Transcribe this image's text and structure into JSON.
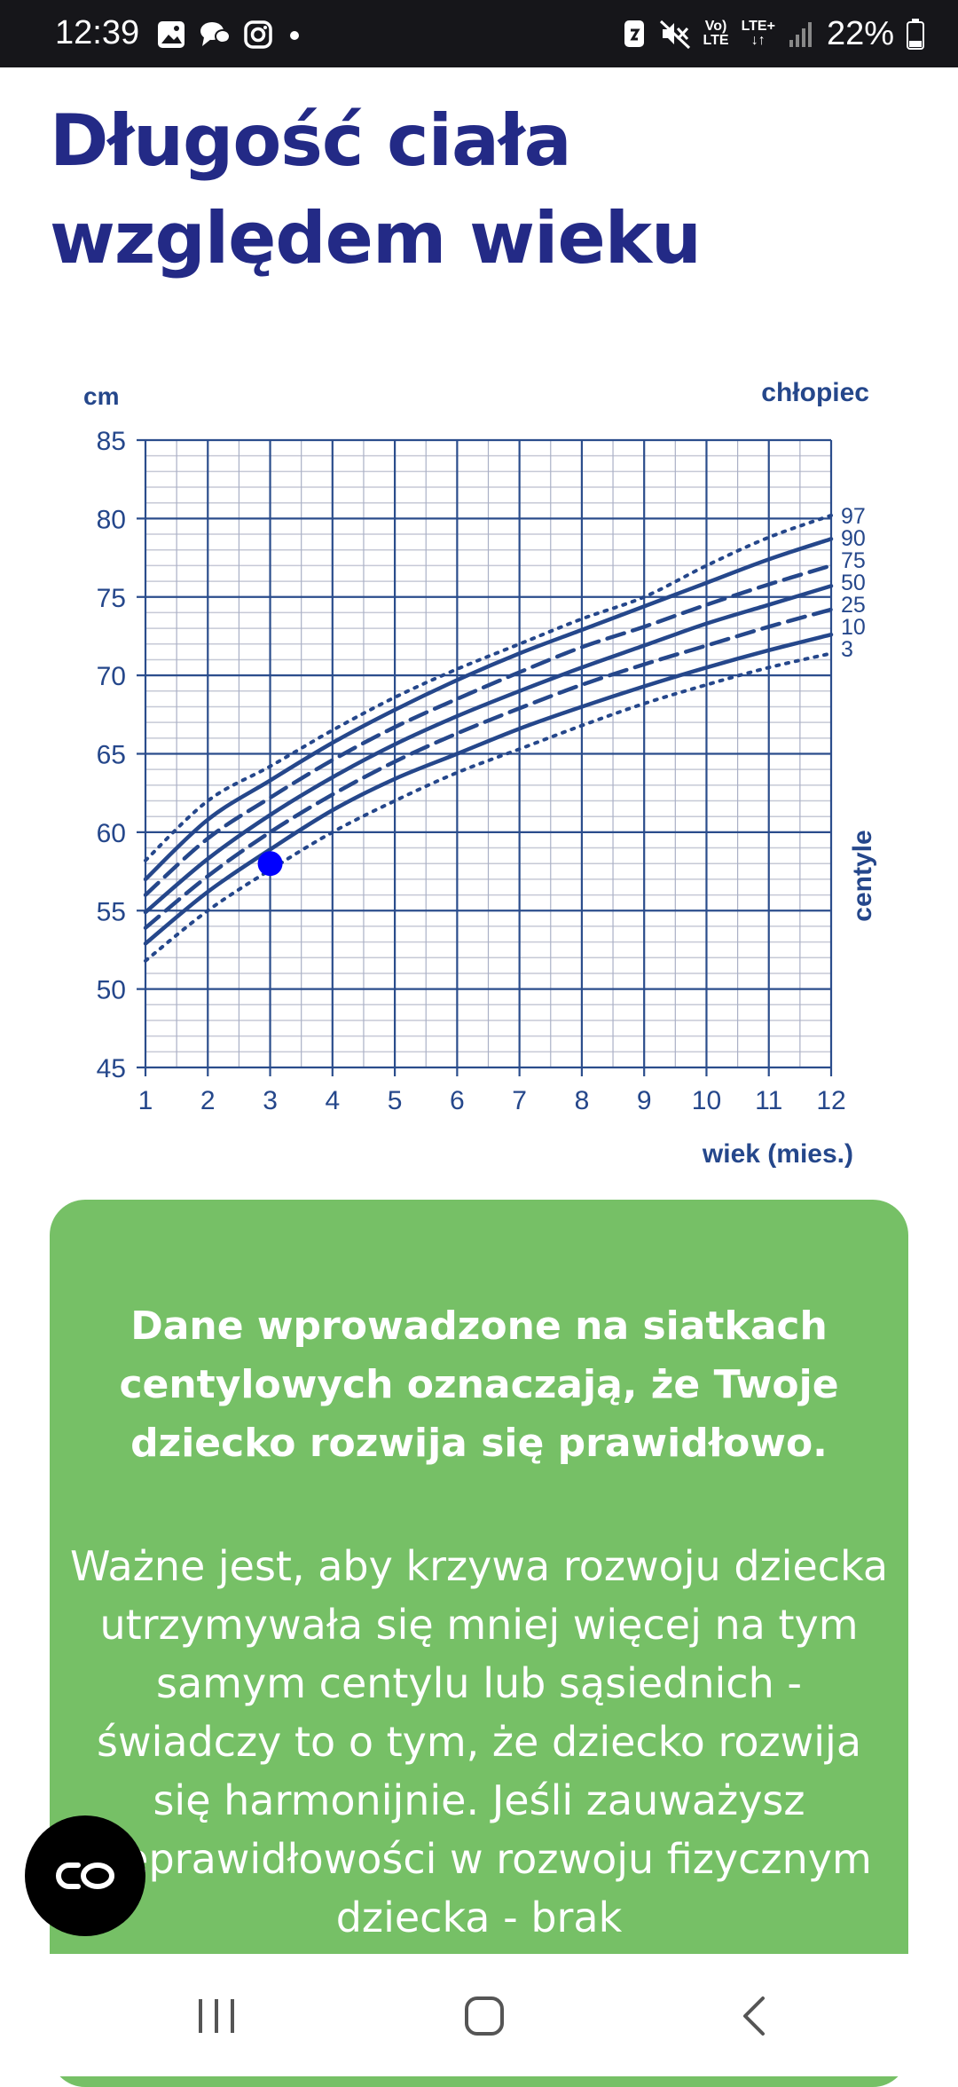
{
  "status_bar": {
    "time": "12:39",
    "network_top": "LTE+",
    "volte_top": "Vo)",
    "volte_bottom": "LTE",
    "battery": "22%"
  },
  "page_title": "Długość ciała względem wieku",
  "chart_data": {
    "type": "line",
    "title": "",
    "subtitle": "chłopiec",
    "ylabel": "cm",
    "xlabel": "wiek (mies.)",
    "side_label": "centyle",
    "x": [
      1,
      2,
      3,
      4,
      5,
      6,
      7,
      8,
      9,
      10,
      11,
      12
    ],
    "xlim": [
      1,
      12
    ],
    "ylim": [
      45,
      85
    ],
    "y_ticks": [
      45,
      50,
      55,
      60,
      65,
      70,
      75,
      80,
      85
    ],
    "grid": true,
    "series": [
      {
        "name": "97",
        "style": "dotted",
        "values": [
          58.2,
          62.0,
          64.2,
          66.5,
          68.6,
          70.4,
          72.0,
          73.6,
          75.0,
          77.0,
          78.8,
          80.2
        ]
      },
      {
        "name": "90",
        "style": "solid",
        "values": [
          57.0,
          60.8,
          63.3,
          65.7,
          67.8,
          69.7,
          71.4,
          72.9,
          74.4,
          75.9,
          77.4,
          78.7
        ]
      },
      {
        "name": "75",
        "style": "dashed",
        "values": [
          56.0,
          59.6,
          62.2,
          64.6,
          66.7,
          68.5,
          70.2,
          71.8,
          73.1,
          74.5,
          75.8,
          77.0
        ]
      },
      {
        "name": "50",
        "style": "solid",
        "values": [
          54.9,
          58.3,
          61.1,
          63.5,
          65.6,
          67.4,
          69.0,
          70.5,
          71.9,
          73.3,
          74.5,
          75.7
        ]
      },
      {
        "name": "25",
        "style": "dashed",
        "values": [
          53.9,
          57.2,
          60.0,
          62.4,
          64.5,
          66.3,
          67.9,
          69.4,
          70.7,
          71.9,
          73.1,
          74.2
        ]
      },
      {
        "name": "10",
        "style": "solid",
        "values": [
          52.9,
          56.2,
          58.9,
          61.4,
          63.4,
          65.0,
          66.6,
          68.0,
          69.3,
          70.5,
          71.6,
          72.6
        ]
      },
      {
        "name": "3",
        "style": "dotted",
        "values": [
          51.8,
          55.0,
          57.6,
          60.0,
          62.0,
          63.8,
          65.3,
          66.8,
          68.2,
          69.4,
          70.5,
          71.4
        ]
      }
    ],
    "points": [
      {
        "x": 3,
        "y": 58
      }
    ],
    "colors": {
      "line": "#25478b",
      "point": "#0000ff",
      "grid_major": "#2b4d8c",
      "grid_minor": "#c6c9d6"
    }
  },
  "info_card": {
    "headline": "Dane wprowadzone na siatkach centylowych oznaczają, że Twoje dziecko rozwija się prawidłowo.",
    "body": "Ważne jest, aby krzywa rozwoju dziecka utrzymywała się mniej więcej na tym samym centylu lub sąsiednich - świadczy to o tym, że dziecko rozwija się harmonijnie. Jeśli zauważysz nieprawidłowości w rozwoju fizycznym dziecka - brak",
    "color": "#76c066"
  },
  "icons": {
    "floating": "infinity-link-icon",
    "nav_recent": "recent-apps-icon",
    "nav_home": "home-icon",
    "nav_back": "back-icon"
  }
}
